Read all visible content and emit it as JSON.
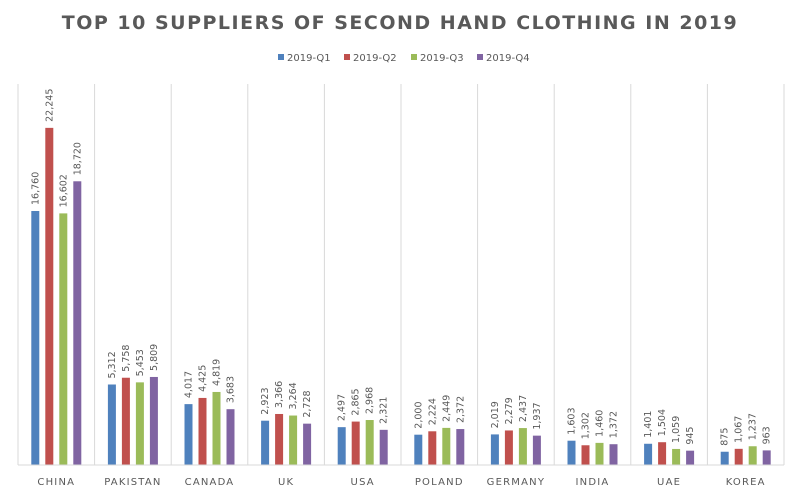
{
  "chart_data": {
    "type": "bar",
    "title": "TOP 10 SUPPLIERS OF SECOND HAND CLOTHING IN 2019",
    "categories": [
      "CHINA",
      "PAKISTAN",
      "CANADA",
      "UK",
      "USA",
      "POLAND",
      "GERMANY",
      "INDIA",
      "UAE",
      "KOREA"
    ],
    "series": [
      {
        "name": "2019-Q1",
        "color": "#4f81bd",
        "values": [
          16760,
          5312,
          4017,
          2923,
          2497,
          2000,
          2019,
          1603,
          1401,
          875
        ]
      },
      {
        "name": "2019-Q2",
        "color": "#c0504d",
        "values": [
          22245,
          5758,
          4425,
          3366,
          2865,
          2224,
          2279,
          1302,
          1504,
          1067
        ]
      },
      {
        "name": "2019-Q3",
        "color": "#9bbb59",
        "values": [
          16602,
          5453,
          4819,
          3264,
          2968,
          2449,
          2437,
          1460,
          1059,
          1237
        ]
      },
      {
        "name": "2019-Q4",
        "color": "#8064a2",
        "values": [
          18720,
          5809,
          3683,
          2728,
          2321,
          2372,
          1937,
          1372,
          945,
          963
        ]
      }
    ],
    "data_labels": [
      [
        "16,760",
        "5,312",
        "4,017",
        "2,923",
        "2,497",
        "2,000",
        "2,019",
        "1,603",
        "1,401",
        "875"
      ],
      [
        "22,245",
        "5,758",
        "4,425",
        "3,366",
        "2,865",
        "2,224",
        "2,279",
        "1,302",
        "1,504",
        "1,067"
      ],
      [
        "16,602",
        "5,453",
        "4,819",
        "3,264",
        "2,968",
        "2,449",
        "2,437",
        "1,460",
        "1,059",
        "1,237"
      ],
      [
        "18,720",
        "5,809",
        "3,683",
        "2,728",
        "2,321",
        "2,372",
        "1,937",
        "1,372",
        "945",
        "963"
      ]
    ],
    "ylim": [
      0,
      22500
    ],
    "legend_position": "top-center",
    "grid": false,
    "category_separators": true
  }
}
